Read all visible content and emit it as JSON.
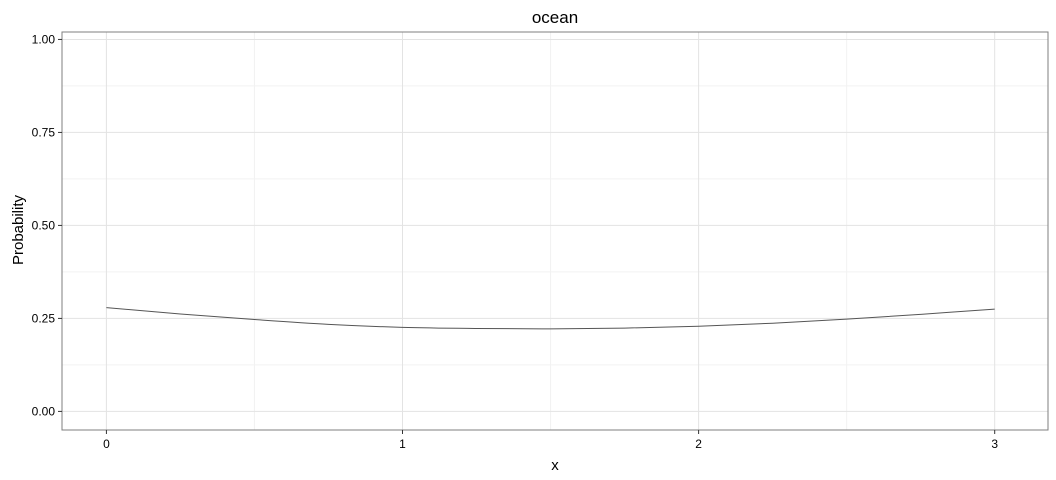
{
  "chart_data": {
    "type": "line",
    "title": "ocean",
    "xlabel": "x",
    "ylabel": "Probability",
    "xlim": [
      -0.15,
      3.18
    ],
    "ylim": [
      -0.05,
      1.02
    ],
    "x_ticks": [
      0,
      1,
      2,
      3
    ],
    "x_tick_labels": [
      "0",
      "1",
      "2",
      "3"
    ],
    "y_ticks": [
      0,
      0.25,
      0.5,
      0.75,
      1
    ],
    "y_tick_labels": [
      "0.00",
      "0.25",
      "0.50",
      "0.75",
      "1.00"
    ],
    "grid": true,
    "legend": "none",
    "series": [
      {
        "color": "#555555",
        "x": [
          0,
          0.25,
          0.5,
          0.75,
          1.0,
          1.25,
          1.5,
          1.75,
          2.0,
          2.25,
          2.5,
          2.75,
          3.0
        ],
        "y": [
          0.279,
          0.262,
          0.247,
          0.234,
          0.226,
          0.223,
          0.222,
          0.224,
          0.229,
          0.237,
          0.248,
          0.261,
          0.275
        ]
      }
    ]
  }
}
